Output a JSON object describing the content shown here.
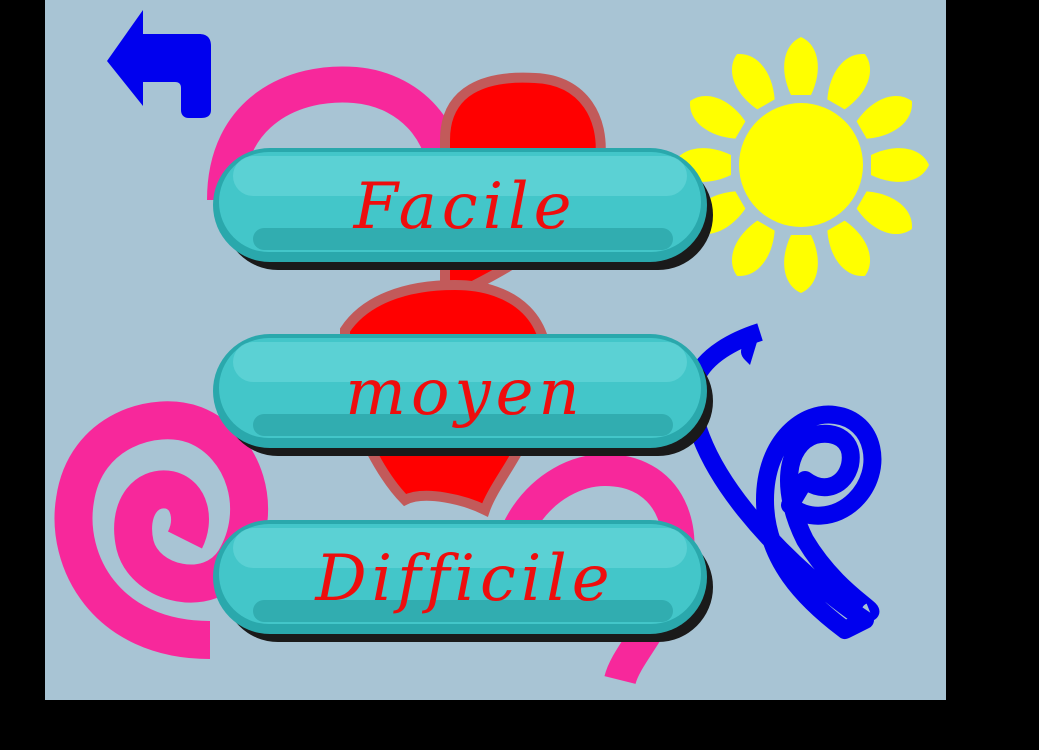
{
  "menu": {
    "easy_label": "Facile",
    "medium_label": "moyen",
    "hard_label": "Difficile"
  },
  "colors": {
    "background": "#a8c4d4",
    "frame": "#000000",
    "button_face": "#3ab8bc",
    "button_text": "#ee0d0d",
    "back_arrow": "#0000ee",
    "spiral": "#f7289b",
    "heart": "#ff0000",
    "sun": "#ffff00",
    "ribbon": "#0000ee"
  },
  "icons": {
    "back": "back-arrow-icon",
    "decorations": [
      "pink-spiral",
      "red-heart",
      "yellow-sun",
      "blue-ribbon"
    ]
  }
}
